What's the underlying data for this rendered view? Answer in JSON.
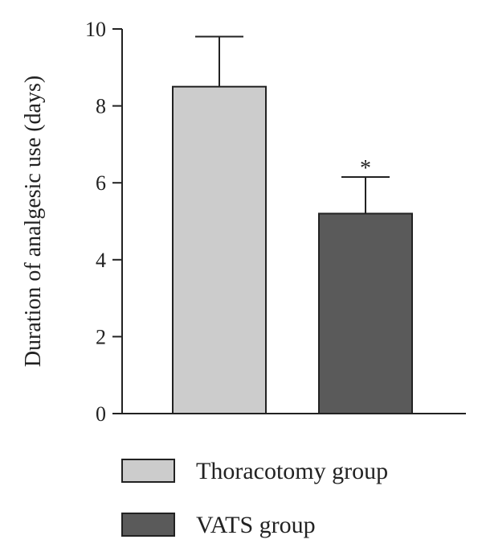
{
  "chart_data": {
    "type": "bar",
    "categories": [
      "Thoracotomy group",
      "VATS group"
    ],
    "values": [
      8.5,
      5.2
    ],
    "errors": [
      1.3,
      0.95
    ],
    "colors": [
      "#cccccc",
      "#5a5a5a"
    ],
    "ylabel": "Duration of analgesic use (days)",
    "ylim": [
      0,
      10
    ],
    "yticks": [
      0,
      2,
      4,
      6,
      8,
      10
    ],
    "annotations": [
      {
        "category": "VATS group",
        "text": "*"
      }
    ],
    "legend": {
      "placement": "bottom",
      "entries": [
        {
          "label": "Thoracotomy group",
          "color": "#cccccc"
        },
        {
          "label": "VATS group",
          "color": "#5a5a5a"
        }
      ]
    },
    "grid": false
  }
}
